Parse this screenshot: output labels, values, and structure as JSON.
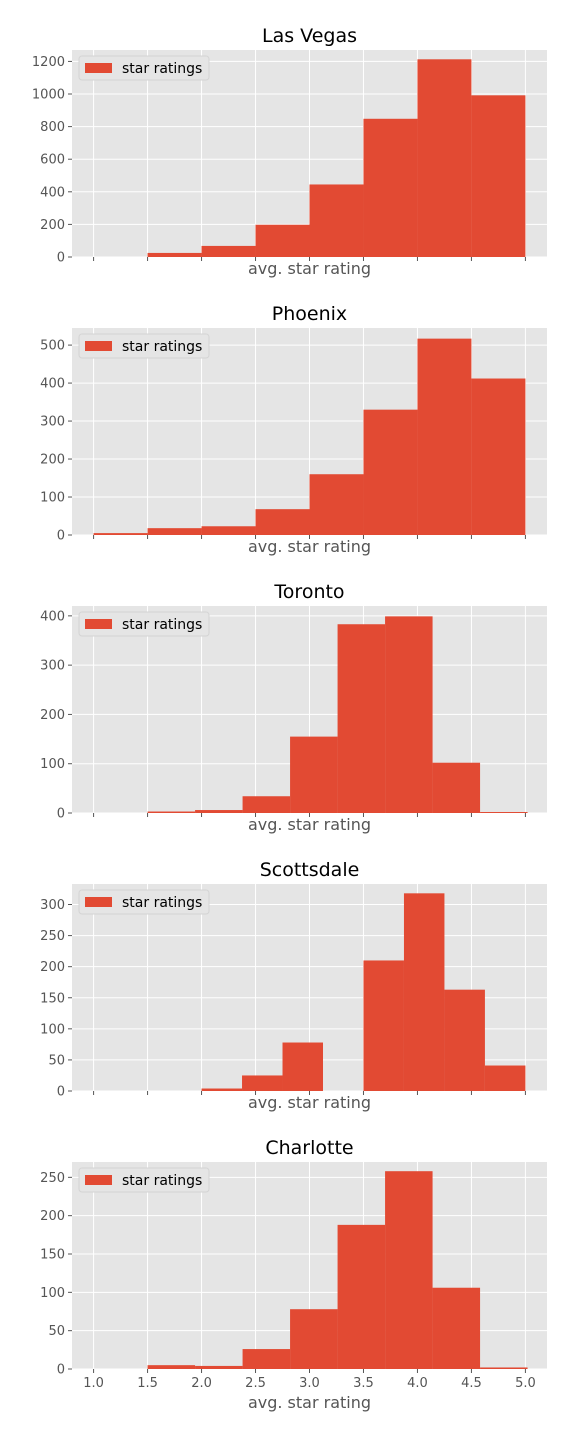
{
  "figure": {
    "background": "#ffffff",
    "plot_background": "#e5e5e5",
    "grid_color": "#ffffff",
    "bar_color": "#e24a33",
    "text_color": "#555555"
  },
  "chart_data": [
    {
      "type": "bar",
      "title": "Las Vegas",
      "xlabel": "avg. star rating",
      "legend": {
        "label": "star ratings",
        "position": "top-left"
      },
      "grid": true,
      "xlim": [
        0.8,
        5.2
      ],
      "ylim": [
        0,
        1270
      ],
      "yticks": [
        0,
        200,
        400,
        600,
        800,
        1000,
        1200
      ],
      "xticks": [
        1.0,
        1.5,
        2.0,
        2.5,
        3.0,
        3.5,
        4.0,
        4.5,
        5.0
      ],
      "xtick_labels_visible": false,
      "bins": [
        [
          1.5,
          2.0,
          25
        ],
        [
          2.0,
          2.5,
          68
        ],
        [
          2.5,
          3.0,
          198
        ],
        [
          3.0,
          3.5,
          445
        ],
        [
          3.5,
          4.0,
          848
        ],
        [
          4.0,
          4.5,
          1213
        ],
        [
          4.5,
          5.0,
          992
        ]
      ]
    },
    {
      "type": "bar",
      "title": "Phoenix",
      "xlabel": "avg. star rating",
      "legend": {
        "label": "star ratings",
        "position": "top-left"
      },
      "grid": true,
      "xlim": [
        0.8,
        5.2
      ],
      "ylim": [
        0,
        545
      ],
      "yticks": [
        0,
        100,
        200,
        300,
        400,
        500
      ],
      "xticks": [
        1.0,
        1.5,
        2.0,
        2.5,
        3.0,
        3.5,
        4.0,
        4.5,
        5.0
      ],
      "xtick_labels_visible": false,
      "bins": [
        [
          1.0,
          1.5,
          5
        ],
        [
          1.5,
          2.0,
          18
        ],
        [
          2.0,
          2.5,
          23
        ],
        [
          2.5,
          3.0,
          68
        ],
        [
          3.0,
          3.5,
          160
        ],
        [
          3.5,
          4.0,
          330
        ],
        [
          4.0,
          4.5,
          517
        ],
        [
          4.5,
          5.0,
          412
        ]
      ]
    },
    {
      "type": "bar",
      "title": "Toronto",
      "xlabel": "avg. star rating",
      "legend": {
        "label": "star ratings",
        "position": "top-left"
      },
      "grid": true,
      "xlim": [
        0.8,
        5.2
      ],
      "ylim": [
        0,
        420
      ],
      "yticks": [
        0,
        100,
        200,
        300,
        400
      ],
      "xticks": [
        1.0,
        1.5,
        2.0,
        2.5,
        3.0,
        3.5,
        4.0,
        4.5,
        5.0
      ],
      "xtick_labels_visible": false,
      "bins": [
        [
          1.5,
          1.94,
          3
        ],
        [
          1.94,
          2.38,
          6
        ],
        [
          2.38,
          2.82,
          34
        ],
        [
          2.82,
          3.26,
          155
        ],
        [
          3.26,
          3.7,
          383
        ],
        [
          3.7,
          4.14,
          399
        ],
        [
          4.14,
          4.58,
          102
        ],
        [
          4.58,
          5.02,
          2
        ]
      ]
    },
    {
      "type": "bar",
      "title": "Scottsdale",
      "xlabel": "avg. star rating",
      "legend": {
        "label": "star ratings",
        "position": "top-left"
      },
      "grid": true,
      "xlim": [
        0.8,
        5.2
      ],
      "ylim": [
        0,
        333
      ],
      "yticks": [
        0,
        50,
        100,
        150,
        200,
        250,
        300
      ],
      "xticks": [
        1.0,
        1.5,
        2.0,
        2.5,
        3.0,
        3.5,
        4.0,
        4.5,
        5.0
      ],
      "xtick_labels_visible": false,
      "bins": [
        [
          2.0,
          2.375,
          4
        ],
        [
          2.375,
          2.75,
          25
        ],
        [
          2.75,
          3.125,
          78
        ],
        [
          3.5,
          3.875,
          210
        ],
        [
          3.875,
          4.25,
          318
        ],
        [
          4.25,
          4.625,
          163
        ],
        [
          4.625,
          5.0,
          41
        ]
      ]
    },
    {
      "type": "bar",
      "title": "Charlotte",
      "xlabel": "avg. star rating",
      "legend": {
        "label": "star ratings",
        "position": "top-left"
      },
      "grid": true,
      "xlim": [
        0.8,
        5.2
      ],
      "ylim": [
        0,
        270
      ],
      "yticks": [
        0,
        50,
        100,
        150,
        200,
        250
      ],
      "xticks": [
        1.0,
        1.5,
        2.0,
        2.5,
        3.0,
        3.5,
        4.0,
        4.5,
        5.0
      ],
      "xtick_labels": [
        "1.0",
        "1.5",
        "2.0",
        "2.5",
        "3.0",
        "3.5",
        "4.0",
        "4.5",
        "5.0"
      ],
      "xtick_labels_visible": true,
      "bins": [
        [
          1.5,
          1.94,
          5
        ],
        [
          1.94,
          2.38,
          4
        ],
        [
          2.38,
          2.82,
          26
        ],
        [
          2.82,
          3.26,
          78
        ],
        [
          3.26,
          3.7,
          188
        ],
        [
          3.7,
          4.14,
          258
        ],
        [
          4.14,
          4.58,
          106
        ],
        [
          4.58,
          5.02,
          2
        ]
      ]
    }
  ]
}
